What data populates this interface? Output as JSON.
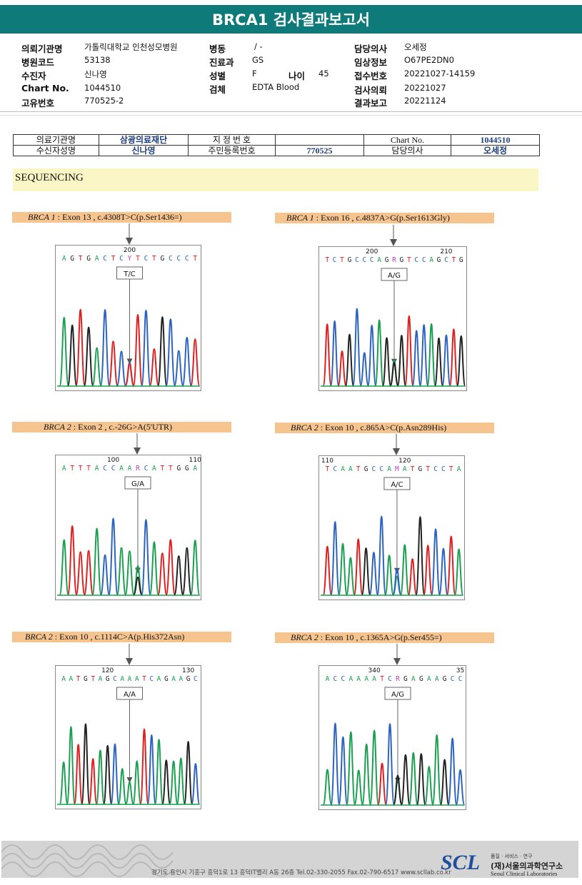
{
  "title": "BRCA1 검사결과보고서",
  "header": {
    "col1": [
      {
        "label": "의뢰기관명",
        "value": "가톨릭대학교 인천성모병원"
      },
      {
        "label": "병원코드",
        "value": "53138"
      },
      {
        "label": "수진자",
        "value": "신나영"
      },
      {
        "label": "Chart No.",
        "value": "1044510"
      },
      {
        "label": "고유번호",
        "value": "770525-2"
      }
    ],
    "col2": [
      {
        "label": "병동",
        "value": "/ -"
      },
      {
        "label": "진료과",
        "value": "GS"
      },
      {
        "label": "성별",
        "value": "F"
      },
      {
        "label": "검체",
        "value": "EDTA Blood"
      }
    ],
    "age_label": "나이",
    "age_value": "45",
    "col3": [
      {
        "label": "담당의사",
        "value": "오세정"
      },
      {
        "label": "임상정보",
        "value": "O67PE2DN0"
      },
      {
        "label": "접수번호",
        "value": "20221027-14159"
      },
      {
        "label": "검사의뢰",
        "value": "20221027"
      },
      {
        "label": "결과보고",
        "value": "20221124"
      }
    ]
  },
  "info_table": {
    "row1": [
      "의료기관명",
      "삼광의료재단",
      "지 정 번 호",
      "",
      "Chart No.",
      "1044510"
    ],
    "row2": [
      "수신자성명",
      "신나영",
      "주민등록번호",
      "770525",
      "담당의사",
      "오세정"
    ]
  },
  "section_title": "SEQUENCING",
  "variants": [
    {
      "gene": "BRCA 1",
      "detail": "Exon 13 , c.4308T>C(p.Ser1436=)",
      "seq": [
        "A",
        "G",
        "T",
        "G",
        "A",
        "C",
        "T",
        "C",
        "Y",
        "T",
        "C",
        "T",
        "G",
        "C",
        "C",
        "C",
        "T"
      ],
      "pos_labels": [
        {
          "t": "200",
          "at": 8
        }
      ],
      "call": "T/C",
      "mut": 8
    },
    {
      "gene": "BRCA 1",
      "detail": "Exon 16 , c.4837A>G(p.Ser1613Gly)",
      "seq": [
        "T",
        "C",
        "T",
        "G",
        "C",
        "C",
        "C",
        "A",
        "G",
        "R",
        "G",
        "T",
        "C",
        "C",
        "A",
        "G",
        "C",
        "T",
        "G"
      ],
      "pos_labels": [
        {
          "t": "200",
          "at": 6
        },
        {
          "t": "210",
          "at": 16
        }
      ],
      "call": "A/G",
      "mut": 9
    },
    {
      "gene": "BRCA 2",
      "detail": "Exon 2 , c.-26G>A(5'UTR)",
      "seq": [
        "A",
        "T",
        "T",
        "T",
        "A",
        "C",
        "C",
        "A",
        "A",
        "R",
        "C",
        "A",
        "T",
        "T",
        "G",
        "G",
        "A"
      ],
      "pos_labels": [
        {
          "t": "100",
          "at": 6
        },
        {
          "t": "110",
          "at": 16
        }
      ],
      "call": "G/A",
      "mut": 9
    },
    {
      "gene": "BRCA 2",
      "detail": "Exon 10 , c.865A>C(p.Asn289His)",
      "seq": [
        "T",
        "C",
        "A",
        "A",
        "T",
        "G",
        "C",
        "C",
        "A",
        "M",
        "A",
        "T",
        "G",
        "T",
        "C",
        "C",
        "T",
        "A"
      ],
      "pos_labels": [
        {
          "t": "110",
          "at": 0
        },
        {
          "t": "120",
          "at": 10
        }
      ],
      "call": "A/C",
      "mut": 9
    },
    {
      "gene": "BRCA 2",
      "detail": "Exon 10 , c.1114C>A(p.His372Asn)",
      "seq": [
        "A",
        "A",
        "T",
        "G",
        "T",
        "A",
        "G",
        "C",
        "A",
        "A",
        "A",
        "T",
        "C",
        "A",
        "G",
        "A",
        "A",
        "G",
        "C"
      ],
      "pos_labels": [
        {
          "t": "120",
          "at": 6
        },
        {
          "t": "130",
          "at": 17
        }
      ],
      "call": "A/A",
      "mut": 9
    },
    {
      "gene": "BRCA 2",
      "detail": "Exon 10 , c.1365A>G(p.Ser455=)",
      "seq": [
        "A",
        "C",
        "C",
        "A",
        "A",
        "A",
        "A",
        "T",
        "C",
        "R",
        "G",
        "A",
        "G",
        "A",
        "A",
        "G",
        "C",
        "C"
      ],
      "pos_labels": [
        {
          "t": "340",
          "at": 6
        },
        {
          "t": "35",
          "at": 17
        }
      ],
      "call": "A/G",
      "mut": 9
    }
  ],
  "colors": {
    "A": "#1aa050",
    "C": "#2d63c0",
    "G": "#222222",
    "T": "#e02020",
    "R": "#c040c0",
    "Y": "#c040c0",
    "M": "#c040c0"
  },
  "footer": {
    "address": "경기도 용인시 기흥구 흥덕1로 13 흥덕IT밸리 A동 26층  Tel.02-330-2055  Fax.02-790-6517  www.scllab.co.kr",
    "logo": "SCL",
    "tagline": "품질 · 서비스 · 연구",
    "org_ko": "(재)서울의과학연구소",
    "org_en": "Seoul Clinical Laboratories"
  }
}
